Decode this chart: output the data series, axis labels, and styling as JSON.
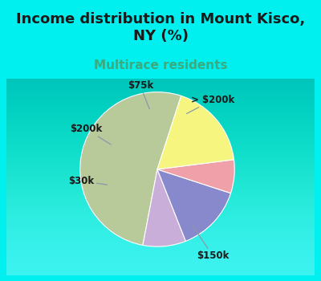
{
  "title": "Income distribution in Mount Kisco,\nNY (%)",
  "subtitle": "Multirace residents",
  "segments": [
    {
      "label": "$150k",
      "value": 52,
      "color": "#b8c99a"
    },
    {
      "label": "> $200k",
      "value": 9,
      "color": "#c8aed8"
    },
    {
      "label": "$75k",
      "value": 14,
      "color": "#8888cc"
    },
    {
      "label": "$200k",
      "value": 7,
      "color": "#f0a0a8"
    },
    {
      "label": "$30k",
      "value": 18,
      "color": "#f5f580"
    }
  ],
  "startangle": 72,
  "background_color": "#00f0f0",
  "chart_bg_top": "#e8f5f0",
  "chart_bg_bottom": "#d0ead8",
  "title_color": "#1a1a1a",
  "title_fontsize": 13,
  "subtitle_color": "#3aaa80",
  "subtitle_fontsize": 11,
  "label_fontsize": 8.5,
  "label_color": "#1a1a1a"
}
